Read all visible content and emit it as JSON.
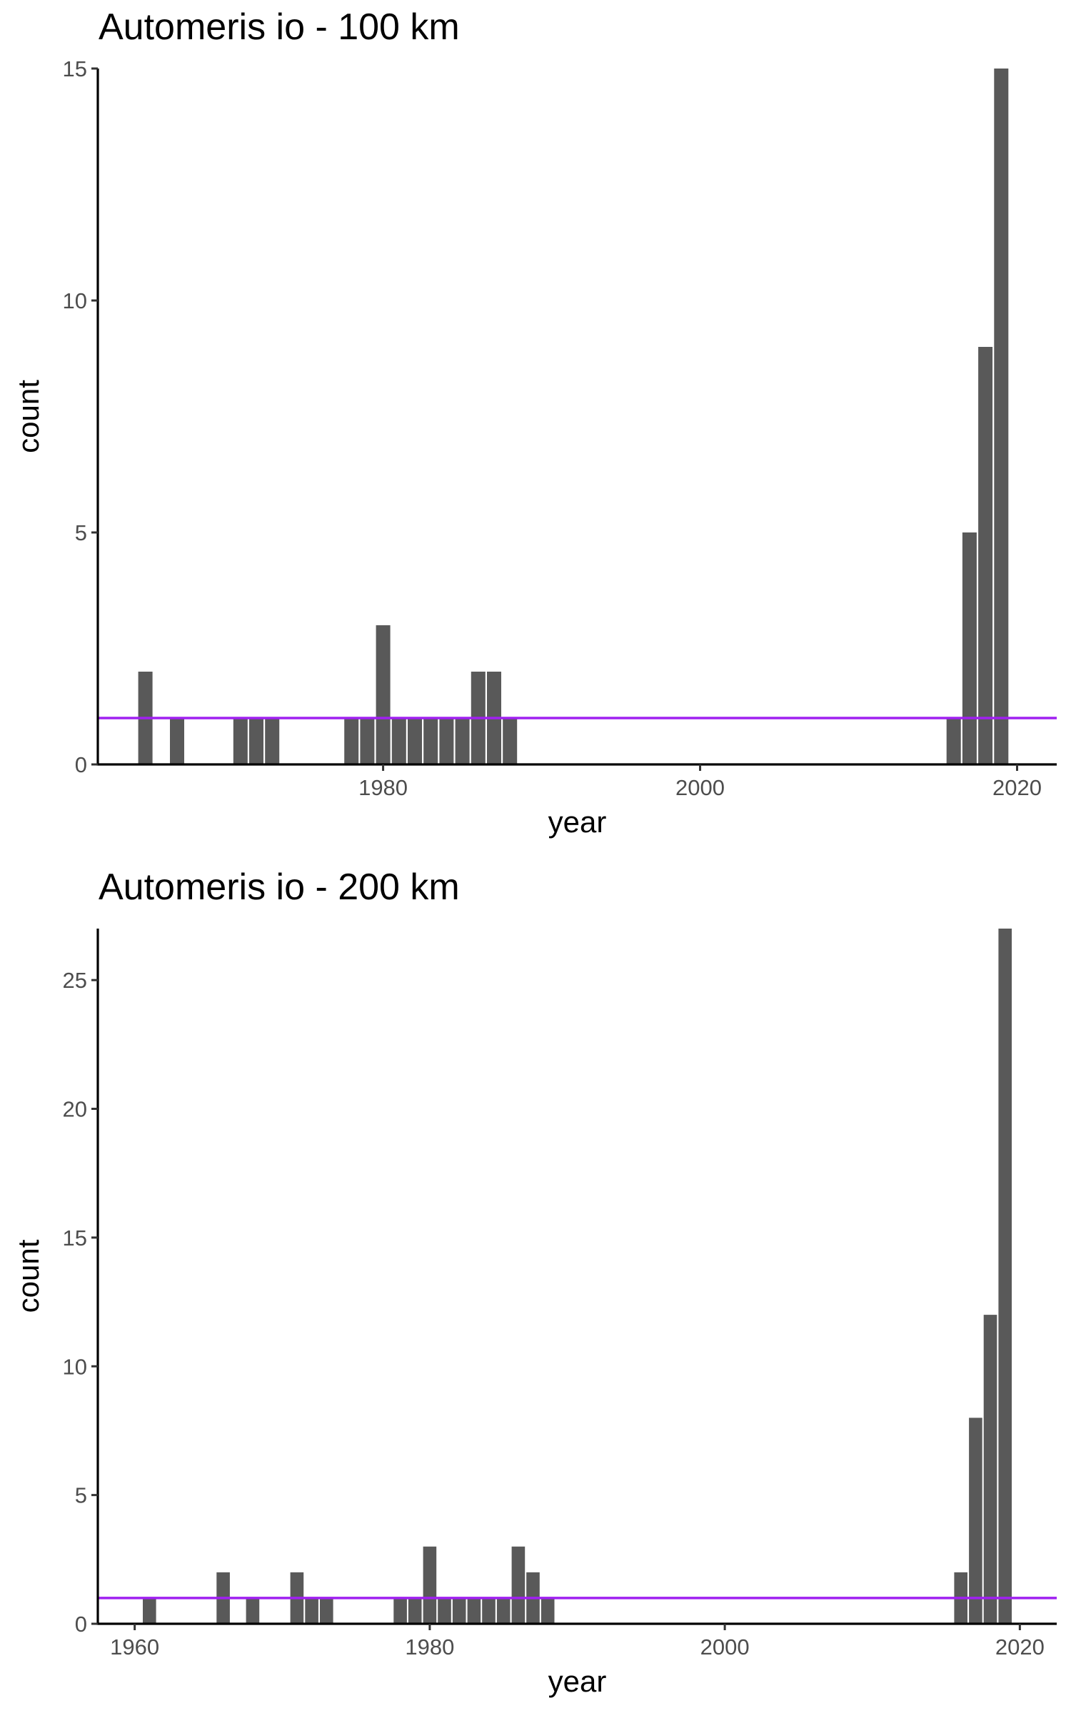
{
  "chart_data": [
    {
      "type": "bar",
      "title": "Automeris io - 100 km",
      "xlabel": "year",
      "ylabel": "count",
      "xlim": [
        1962,
        2022.5
      ],
      "ylim": [
        0,
        15
      ],
      "x_ticks": [
        1980,
        2000,
        2020
      ],
      "y_ticks": [
        0,
        5,
        10,
        15
      ],
      "bar_color": "#595959",
      "reference_line": {
        "y": 1,
        "color": "#a020f0"
      },
      "grid": false,
      "legend": "none",
      "series": [
        {
          "x": [
            1965,
            1967,
            1971,
            1972,
            1973,
            1978,
            1979,
            1980,
            1981,
            1982,
            1983,
            1984,
            1985,
            1986,
            1987,
            1988,
            2016,
            2017,
            2018,
            2019
          ],
          "values": [
            2,
            1,
            1,
            1,
            1,
            1,
            1,
            3,
            1,
            1,
            1,
            1,
            1,
            2,
            2,
            1,
            1,
            5,
            9,
            15
          ]
        }
      ]
    },
    {
      "type": "bar",
      "title": "Automeris io - 200 km",
      "xlabel": "year",
      "ylabel": "count",
      "xlim": [
        1957.5,
        2022.5
      ],
      "ylim": [
        0,
        27
      ],
      "x_ticks": [
        1960,
        1980,
        2000,
        2020
      ],
      "y_ticks": [
        0,
        5,
        10,
        15,
        20,
        25
      ],
      "bar_color": "#595959",
      "reference_line": {
        "y": 1,
        "color": "#a020f0"
      },
      "grid": false,
      "legend": "none",
      "series": [
        {
          "x": [
            1961,
            1966,
            1968,
            1971,
            1972,
            1973,
            1978,
            1979,
            1980,
            1981,
            1982,
            1983,
            1984,
            1985,
            1986,
            1987,
            1988,
            2016,
            2017,
            2018,
            2019
          ],
          "values": [
            1,
            2,
            1,
            2,
            1,
            1,
            1,
            1,
            3,
            1,
            1,
            1,
            1,
            1,
            3,
            2,
            1,
            2,
            8,
            12,
            27
          ]
        }
      ]
    }
  ]
}
